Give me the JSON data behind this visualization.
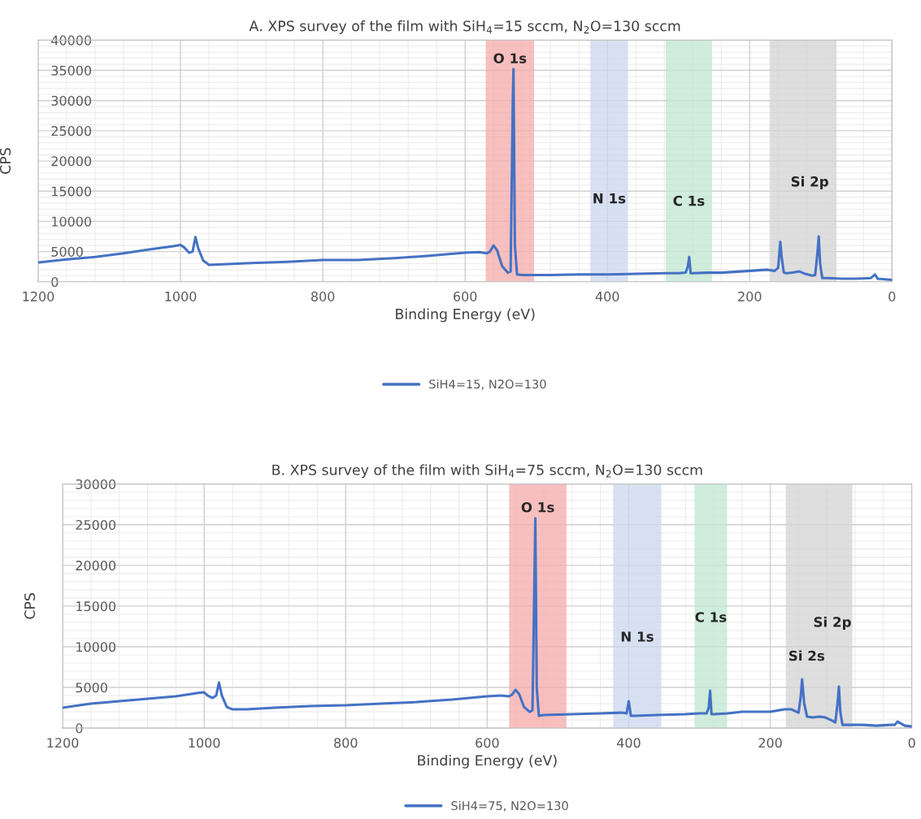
{
  "chart_data": [
    {
      "type": "line",
      "title": "A. XPS survey of the film with SiH$_{4}$=15 sccm, N$_{2}$O=130 sccm",
      "xlabel": "Binding Energy (eV)",
      "ylabel": "CPS",
      "xlim": [
        1200,
        0
      ],
      "xticks": [
        1200,
        1000,
        800,
        600,
        400,
        200,
        0
      ],
      "ylim": [
        0,
        40000
      ],
      "yticks": [
        0,
        5000,
        10000,
        15000,
        20000,
        25000,
        30000,
        35000,
        40000
      ],
      "grid": true,
      "legend": "bottom",
      "marker": "none",
      "line_style": "solid",
      "series": [
        {
          "name": "SiH4=15, N2O=130",
          "color": "#4472c4",
          "x": [
            1200,
            1160,
            1120,
            1080,
            1040,
            1010,
            1000,
            995,
            988,
            983,
            979,
            975,
            968,
            960,
            940,
            900,
            850,
            800,
            750,
            700,
            650,
            600,
            580,
            570,
            565,
            560,
            555,
            548,
            540,
            536,
            533,
            532,
            530,
            527,
            520,
            480,
            440,
            400,
            360,
            320,
            300,
            290,
            287,
            285,
            283,
            280,
            260,
            240,
            200,
            175,
            165,
            160,
            157,
            155,
            152,
            148,
            140,
            130,
            122,
            112,
            108,
            105,
            103,
            101,
            98,
            90,
            70,
            50,
            30,
            26,
            24,
            20,
            10,
            0
          ],
          "values": [
            3200,
            3700,
            4100,
            4700,
            5400,
            5900,
            6100,
            5700,
            4800,
            5000,
            7400,
            5500,
            3500,
            2800,
            2900,
            3100,
            3300,
            3600,
            3600,
            3900,
            4300,
            4800,
            4900,
            4700,
            5000,
            6000,
            5200,
            2600,
            1500,
            1700,
            30000,
            35200,
            6000,
            1200,
            1100,
            1100,
            1200,
            1200,
            1300,
            1400,
            1400,
            1500,
            2500,
            4100,
            1400,
            1400,
            1500,
            1500,
            1800,
            2000,
            1800,
            2300,
            6600,
            4000,
            1500,
            1400,
            1500,
            1700,
            1300,
            1000,
            1100,
            4500,
            7500,
            3000,
            600,
            600,
            500,
            500,
            600,
            1000,
            1200,
            500,
            400,
            300
          ]
        }
      ],
      "bands": [
        {
          "axis": "x",
          "from": 571,
          "to": 503,
          "color": "#f6a9a9",
          "label": "O 1s"
        },
        {
          "axis": "x",
          "from": 424,
          "to": 371,
          "color": "#cad7ee",
          "label": "N 1s"
        },
        {
          "axis": "x",
          "from": 318,
          "to": 253,
          "color": "#bfe6d0",
          "label": "C 1s"
        },
        {
          "axis": "x",
          "from": 172,
          "to": 78,
          "color": "#d3d3d3",
          "label": "Si 2p"
        }
      ]
    },
    {
      "type": "line",
      "title": "B. XPS survey of the film with SiH$_{4}$=75 sccm, N$_{2}$O=130 sccm",
      "xlabel": "Binding Energy (eV)",
      "ylabel": "CPS",
      "xlim": [
        1200,
        0
      ],
      "xticks": [
        1200,
        1000,
        800,
        600,
        400,
        200,
        0
      ],
      "ylim": [
        0,
        30000
      ],
      "yticks": [
        0,
        5000,
        10000,
        15000,
        20000,
        25000,
        30000
      ],
      "grid": true,
      "legend": "bottom",
      "marker": "none",
      "line_style": "solid",
      "series": [
        {
          "name": "SiH4=75, N2O=130",
          "color": "#4472c4",
          "x": [
            1200,
            1160,
            1120,
            1080,
            1040,
            1010,
            1000,
            995,
            988,
            983,
            979,
            975,
            968,
            960,
            940,
            900,
            850,
            800,
            750,
            700,
            650,
            600,
            580,
            570,
            565,
            560,
            555,
            548,
            540,
            536,
            533,
            532,
            530,
            527,
            520,
            480,
            440,
            410,
            403,
            400,
            397,
            392,
            360,
            320,
            300,
            290,
            287,
            285,
            283,
            280,
            260,
            240,
            200,
            180,
            170,
            160,
            157,
            155,
            152,
            148,
            140,
            130,
            122,
            112,
            108,
            105,
            103,
            101,
            98,
            90,
            70,
            50,
            30,
            24,
            20,
            10,
            0
          ],
          "values": [
            2500,
            3000,
            3300,
            3600,
            3900,
            4300,
            4400,
            4000,
            3700,
            4000,
            5600,
            4000,
            2600,
            2300,
            2300,
            2500,
            2700,
            2800,
            3000,
            3200,
            3500,
            3900,
            4000,
            3900,
            4100,
            4700,
            4200,
            2600,
            2000,
            2200,
            20000,
            25800,
            5000,
            1500,
            1600,
            1700,
            1800,
            1900,
            1800,
            3300,
            1500,
            1500,
            1600,
            1700,
            1800,
            1800,
            2500,
            4600,
            1700,
            1700,
            1800,
            2000,
            2000,
            2300,
            2300,
            1900,
            3800,
            6000,
            3000,
            1400,
            1300,
            1400,
            1300,
            900,
            700,
            3000,
            5100,
            2000,
            400,
            400,
            400,
            300,
            400,
            400,
            800,
            300,
            200
          ]
        }
      ],
      "bands": [
        {
          "axis": "x",
          "from": 569,
          "to": 488,
          "color": "#f6a9a9",
          "label": "O 1s"
        },
        {
          "axis": "x",
          "from": 422,
          "to": 354,
          "color": "#cad7ee",
          "label": "N 1s"
        },
        {
          "axis": "x",
          "from": 307,
          "to": 261,
          "color": "#bfe6d0",
          "label": "C 1s"
        },
        {
          "axis": "x",
          "from": 178,
          "to": 84,
          "color": "#d3d3d3",
          "label": "Si 2p"
        }
      ],
      "annotations": [
        {
          "text": "Si 2s",
          "x": 155,
          "y": 6000
        }
      ]
    }
  ]
}
